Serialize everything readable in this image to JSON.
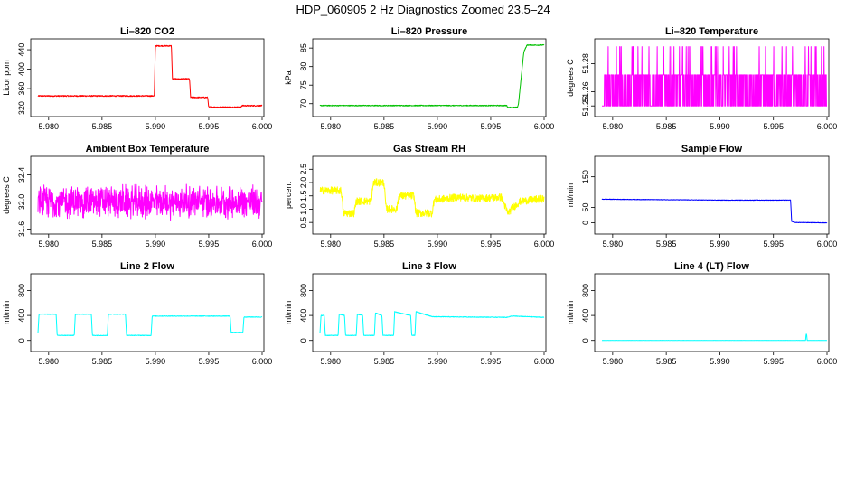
{
  "figure_title": "HDP_060905  2 Hz Diagnostics Zoomed 23.5–24",
  "chart_data": [
    {
      "type": "line",
      "title": "Li–820 CO2",
      "xlabel": "",
      "ylabel": "Licor ppm",
      "color": "#ff0000",
      "xlim": [
        5.979,
        6.0
      ],
      "ylim": [
        310,
        455
      ],
      "xticks": [
        "5.980",
        "5.985",
        "5.990",
        "5.995",
        "6.000"
      ],
      "yticks": [
        "320",
        "360",
        "400",
        "440"
      ],
      "x": [
        5.979,
        5.9899,
        5.99,
        5.9915,
        5.9916,
        5.9932,
        5.9933,
        5.9949,
        5.995,
        5.998,
        5.9981,
        6.0
      ],
      "y": [
        345,
        345,
        448,
        448,
        380,
        380,
        342,
        342,
        322,
        322,
        325,
        325
      ],
      "noise": 1.2
    },
    {
      "type": "line",
      "title": "Li–820 Pressure",
      "xlabel": "",
      "ylabel": "kPa",
      "color": "#00c000",
      "xlim": [
        5.979,
        6.0
      ],
      "ylim": [
        67.5,
        86.5
      ],
      "xticks": [
        "5.980",
        "5.985",
        "5.990",
        "5.995",
        "6.000"
      ],
      "yticks": [
        "70",
        "75",
        "80",
        "85"
      ],
      "x": [
        5.979,
        5.9965,
        5.9966,
        5.9975,
        5.9976,
        5.9981,
        5.9984,
        6.0
      ],
      "y": [
        69.5,
        69.5,
        69.0,
        69.0,
        70.0,
        84.0,
        85.8,
        85.8
      ],
      "noise": 0.12
    },
    {
      "type": "line",
      "title": "Li–820 Temperature",
      "xlabel": "",
      "ylabel": "degrees C",
      "color": "#ff00ff",
      "xlim": [
        5.979,
        6.0
      ],
      "ylim": [
        51.245,
        51.295
      ],
      "xticks": [
        "5.980",
        "5.985",
        "5.990",
        "5.995",
        "6.000"
      ],
      "yticks": [
        "51.25",
        "51.26",
        "51.28"
      ],
      "low": 51.25,
      "mid": 51.272,
      "high": 51.292,
      "spike_prob": 0.07
    },
    {
      "type": "line",
      "title": "Ambient Box Temperature",
      "xlabel": "",
      "ylabel": "degrees C",
      "color": "#ff00ff",
      "xlim": [
        5.979,
        6.0
      ],
      "ylim": [
        31.58,
        32.62
      ],
      "xticks": [
        "5.980",
        "5.985",
        "5.990",
        "5.995",
        "6.000"
      ],
      "yticks": [
        "31.6",
        "32.0",
        "32.4"
      ],
      "mean": 32.0,
      "amplitude": 0.28
    },
    {
      "type": "line",
      "title": "Gas Stream RH",
      "xlabel": "",
      "ylabel": "percent",
      "color": "#ffff00",
      "xlim": [
        5.979,
        6.0
      ],
      "ylim": [
        0.2,
        2.85
      ],
      "xticks": [
        "5.980",
        "5.985",
        "5.990",
        "5.995",
        "6.000"
      ],
      "yticks": [
        "0.5",
        "1.0",
        "1.5",
        "2.0",
        "2.5"
      ],
      "x": [
        5.979,
        5.981,
        5.9812,
        5.9822,
        5.9824,
        5.9838,
        5.984,
        5.985,
        5.9852,
        5.9862,
        5.9864,
        5.9878,
        5.988,
        5.9895,
        5.9897,
        5.992,
        5.994,
        5.996,
        5.9966,
        5.9972,
        5.9978,
        6.0
      ],
      "y": [
        1.7,
        1.7,
        0.85,
        0.85,
        1.3,
        1.3,
        2.0,
        2.0,
        1.0,
        1.0,
        1.5,
        1.5,
        0.85,
        0.85,
        1.35,
        1.45,
        1.4,
        1.45,
        0.85,
        1.1,
        1.3,
        1.4
      ],
      "noise": 0.14
    },
    {
      "type": "line",
      "title": "Sample Flow",
      "xlabel": "",
      "ylabel": "ml/min",
      "color": "#0000ff",
      "xlim": [
        5.979,
        6.0
      ],
      "ylim": [
        -25,
        205
      ],
      "xticks": [
        "5.980",
        "5.985",
        "5.990",
        "5.995",
        "6.000"
      ],
      "yticks": [
        "0",
        "50",
        "150"
      ],
      "x": [
        5.979,
        5.99,
        5.9966,
        5.9967,
        5.997,
        6.0
      ],
      "y": [
        77,
        74,
        74,
        5,
        1,
        0
      ],
      "noise": 0.8
    },
    {
      "type": "line",
      "title": "Line 2 Flow",
      "xlabel": "",
      "ylabel": "ml/min",
      "color": "#00ffff",
      "xlim": [
        5.979,
        6.0
      ],
      "ylim": [
        -120,
        1010
      ],
      "xticks": [
        "5.980",
        "5.985",
        "5.990",
        "5.995",
        "6.000"
      ],
      "yticks": [
        "0",
        "400",
        "800"
      ],
      "x": [
        5.979,
        5.9791,
        5.9807,
        5.9808,
        5.9824,
        5.9825,
        5.984,
        5.9841,
        5.9855,
        5.9856,
        5.9872,
        5.9873,
        5.988,
        5.9881,
        5.9896,
        5.9897,
        5.997,
        5.9971,
        5.9982,
        5.9983,
        6.0
      ],
      "y": [
        120,
        420,
        420,
        80,
        80,
        420,
        420,
        80,
        80,
        420,
        420,
        80,
        80,
        80,
        80,
        390,
        390,
        130,
        130,
        375,
        375
      ],
      "noise": 5
    },
    {
      "type": "line",
      "title": "Line 3 Flow",
      "xlabel": "",
      "ylabel": "ml/min",
      "color": "#00ffff",
      "xlim": [
        5.979,
        6.0
      ],
      "ylim": [
        -120,
        1010
      ],
      "xticks": [
        "5.980",
        "5.985",
        "5.990",
        "5.995",
        "6.000"
      ],
      "yticks": [
        "0",
        "400",
        "800"
      ],
      "x": [
        5.979,
        5.9791,
        5.9794,
        5.9795,
        5.9807,
        5.9808,
        5.9813,
        5.9814,
        5.9824,
        5.9825,
        5.983,
        5.9831,
        5.9841,
        5.9842,
        5.9848,
        5.9849,
        5.9859,
        5.986,
        5.9875,
        5.9876,
        5.9879,
        5.988,
        5.9895,
        5.9965,
        5.997,
        6.0
      ],
      "y": [
        120,
        400,
        400,
        80,
        80,
        420,
        400,
        80,
        80,
        420,
        400,
        80,
        80,
        440,
        400,
        80,
        80,
        460,
        400,
        80,
        80,
        460,
        380,
        370,
        390,
        370
      ],
      "noise": 5
    },
    {
      "type": "line",
      "title": "Line 4 (LT) Flow",
      "xlabel": "",
      "ylabel": "ml/min",
      "color": "#00ffff",
      "xlim": [
        5.979,
        6.0
      ],
      "ylim": [
        -120,
        1010
      ],
      "xticks": [
        "5.980",
        "5.985",
        "5.990",
        "5.995",
        "6.000"
      ],
      "yticks": [
        "0",
        "400",
        "800"
      ],
      "x": [
        5.979,
        5.998,
        5.99805,
        5.9981,
        5.99815,
        6.0
      ],
      "y": [
        0,
        0,
        100,
        100,
        0,
        0
      ],
      "noise": 1
    }
  ]
}
